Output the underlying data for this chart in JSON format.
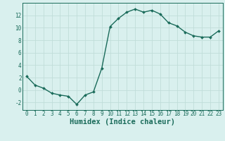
{
  "x": [
    0,
    1,
    2,
    3,
    4,
    5,
    6,
    7,
    8,
    9,
    10,
    11,
    12,
    13,
    14,
    15,
    16,
    17,
    18,
    19,
    20,
    21,
    22,
    23
  ],
  "y": [
    2.2,
    0.8,
    0.3,
    -0.5,
    -0.8,
    -1.0,
    -2.3,
    -0.8,
    -0.3,
    3.5,
    10.2,
    11.5,
    12.5,
    13.0,
    12.5,
    12.8,
    12.2,
    10.8,
    10.3,
    9.3,
    8.7,
    8.5,
    8.5,
    9.5
  ],
  "line_color": "#1a6b5a",
  "marker": "D",
  "marker_size": 2.0,
  "bg_color": "#d9f0ee",
  "grid_color": "#c0ddd9",
  "xlabel": "Humidex (Indice chaleur)",
  "xlim": [
    -0.5,
    23.5
  ],
  "ylim": [
    -3.2,
    14.0
  ],
  "yticks": [
    -2,
    0,
    2,
    4,
    6,
    8,
    10,
    12
  ],
  "xticks": [
    0,
    1,
    2,
    3,
    4,
    5,
    6,
    7,
    8,
    9,
    10,
    11,
    12,
    13,
    14,
    15,
    16,
    17,
    18,
    19,
    20,
    21,
    22,
    23
  ],
  "tick_fontsize": 5.5,
  "xlabel_fontsize": 7.5,
  "linewidth": 1.0
}
